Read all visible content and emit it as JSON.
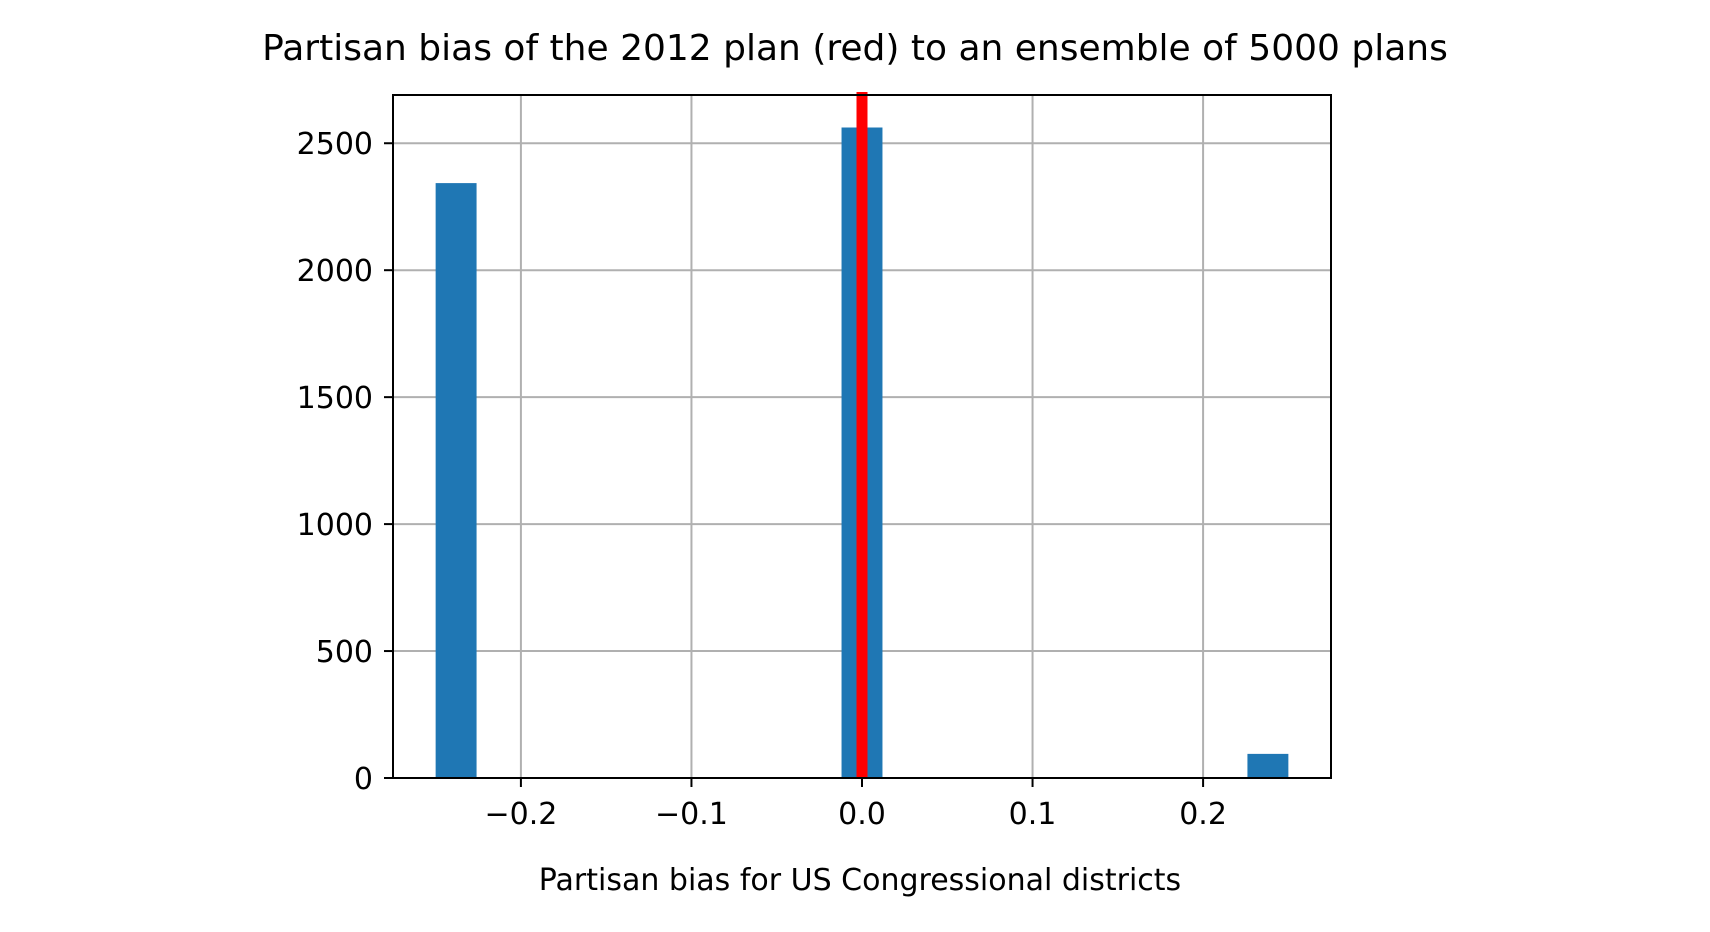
{
  "chart_data": {
    "type": "bar",
    "title": "Partisan bias of the 2012 plan (red) to an ensemble of 5000 plans",
    "xlabel": "Partisan bias for US Congressional districts",
    "ylabel": "",
    "xlim": [
      -0.275,
      0.275
    ],
    "ylim": [
      0,
      2690
    ],
    "xticks": [
      {
        "value": -0.2,
        "label": "−0.2"
      },
      {
        "value": -0.1,
        "label": "−0.1"
      },
      {
        "value": 0.0,
        "label": "0.0"
      },
      {
        "value": 0.1,
        "label": "0.1"
      },
      {
        "value": 0.2,
        "label": "0.2"
      }
    ],
    "yticks": [
      {
        "value": 0,
        "label": "0"
      },
      {
        "value": 500,
        "label": "500"
      },
      {
        "value": 1000,
        "label": "1000"
      },
      {
        "value": 1500,
        "label": "1500"
      },
      {
        "value": 2000,
        "label": "2000"
      },
      {
        "value": 2500,
        "label": "2500"
      }
    ],
    "grid": true,
    "bin_width": 0.024,
    "bars": [
      {
        "x": -0.238,
        "value": 2343
      },
      {
        "x": 0.0,
        "value": 2562
      },
      {
        "x": 0.238,
        "value": 95
      }
    ],
    "reference_line": {
      "x": 0.0
    },
    "colors": {
      "bar": "#1f77b4",
      "reference_line": "#ff0000",
      "grid": "#b0b0b0",
      "axes": "#000000"
    }
  }
}
